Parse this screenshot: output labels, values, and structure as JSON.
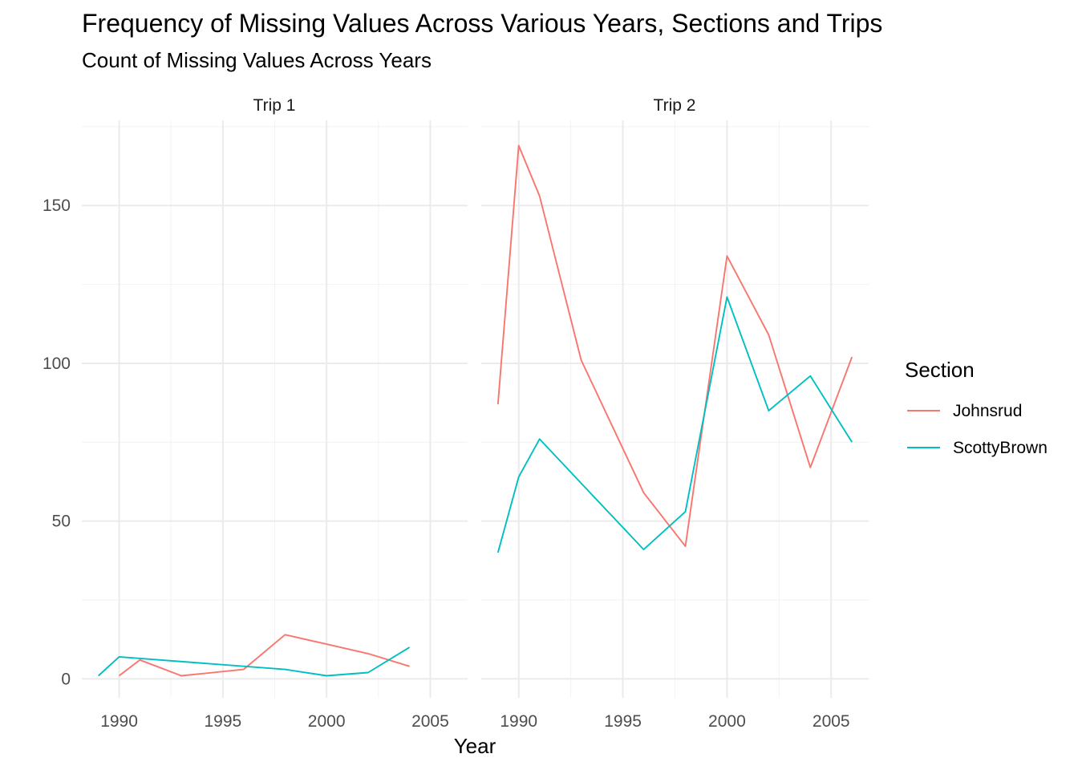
{
  "chart_data": {
    "type": "line",
    "title": "Frequency of Missing Values Across Various Years, Sections and Trips",
    "subtitle": "Count of Missing Values Across Years",
    "xlabel": "Year",
    "ylabel": "",
    "xlim": [
      1988.2,
      2006.8
    ],
    "ylim": [
      -6,
      177
    ],
    "x_ticks": [
      1990,
      1995,
      2000,
      2005
    ],
    "y_ticks": [
      0,
      50,
      100,
      150
    ],
    "x_tick_labels": [
      "1990",
      "1995",
      "2000",
      "2005"
    ],
    "y_tick_labels": [
      "0",
      "50",
      "100",
      "150"
    ],
    "grid": true,
    "legend": {
      "title": "Section",
      "position": "right",
      "entries": [
        {
          "name": "Johnsrud",
          "color": "#F8766D"
        },
        {
          "name": "ScottyBrown",
          "color": "#00BFC4"
        }
      ]
    },
    "panels": [
      {
        "label": "Trip 1",
        "series": [
          {
            "name": "Johnsrud",
            "color": "#F8766D",
            "x": [
              1990,
              1991,
              1993,
              1996,
              1998,
              2000,
              2002,
              2004
            ],
            "y": [
              1,
              6,
              1,
              3,
              14,
              11,
              8,
              4
            ]
          },
          {
            "name": "ScottyBrown",
            "color": "#00BFC4",
            "x": [
              1989,
              1990,
              1996,
              1998,
              2000,
              2002,
              2004
            ],
            "y": [
              1,
              7,
              4,
              3,
              1,
              2,
              10
            ]
          }
        ]
      },
      {
        "label": "Trip 2",
        "series": [
          {
            "name": "Johnsrud",
            "color": "#F8766D",
            "x": [
              1989,
              1990,
              1991,
              1993,
              1996,
              1998,
              2000,
              2002,
              2004,
              2006
            ],
            "y": [
              87,
              169,
              153,
              101,
              59,
              42,
              134,
              109,
              67,
              102
            ]
          },
          {
            "name": "ScottyBrown",
            "color": "#00BFC4",
            "x": [
              1989,
              1990,
              1991,
              1993,
              1996,
              1998,
              2000,
              2002,
              2004,
              2006
            ],
            "y": [
              40,
              64,
              76,
              62,
              41,
              53,
              121,
              85,
              96,
              75
            ]
          }
        ]
      }
    ]
  }
}
